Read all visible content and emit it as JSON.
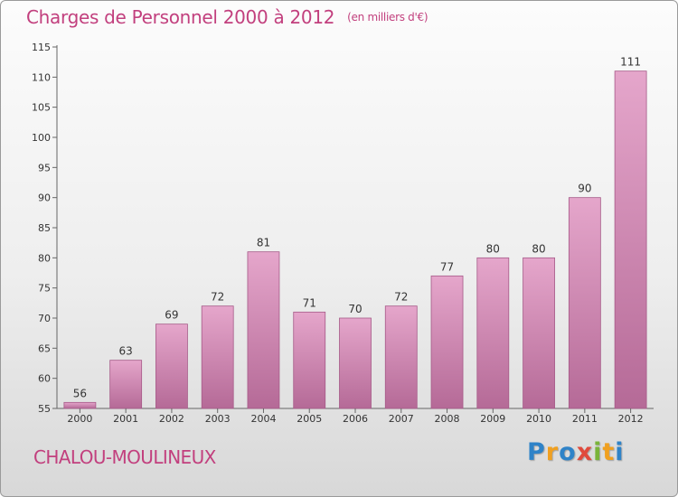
{
  "header": {
    "title": "Charges de Personnel 2000 à 2012",
    "unit": "(en milliers d'€)"
  },
  "footer": {
    "commune": "CHALOU-MOULINEUX",
    "logo_letters": [
      {
        "char": "P",
        "color": "#2f83c8"
      },
      {
        "char": "r",
        "color": "#f0a020"
      },
      {
        "char": "o",
        "color": "#2f83c8"
      },
      {
        "char": "x",
        "color": "#e04a3c"
      },
      {
        "char": "i",
        "color": "#7ab43a"
      },
      {
        "char": "t",
        "color": "#f0a020"
      },
      {
        "char": "i",
        "color": "#2f83c8"
      }
    ]
  },
  "colors": {
    "bar_top": "#e5a6cb",
    "bar_bottom": "#b56a97",
    "bar_edge": "#a65a88",
    "accent": "#c2407e"
  },
  "chart_data": {
    "type": "bar",
    "categories": [
      "2000",
      "2001",
      "2002",
      "2003",
      "2004",
      "2005",
      "2006",
      "2007",
      "2008",
      "2009",
      "2010",
      "2011",
      "2012"
    ],
    "values": [
      56,
      63,
      69,
      72,
      81,
      71,
      70,
      72,
      77,
      80,
      80,
      90,
      111
    ],
    "yticks": [
      55,
      60,
      65,
      70,
      75,
      80,
      85,
      90,
      95,
      100,
      105,
      110,
      115
    ],
    "ylim": [
      55,
      115
    ],
    "grid": false,
    "legend": "none"
  }
}
